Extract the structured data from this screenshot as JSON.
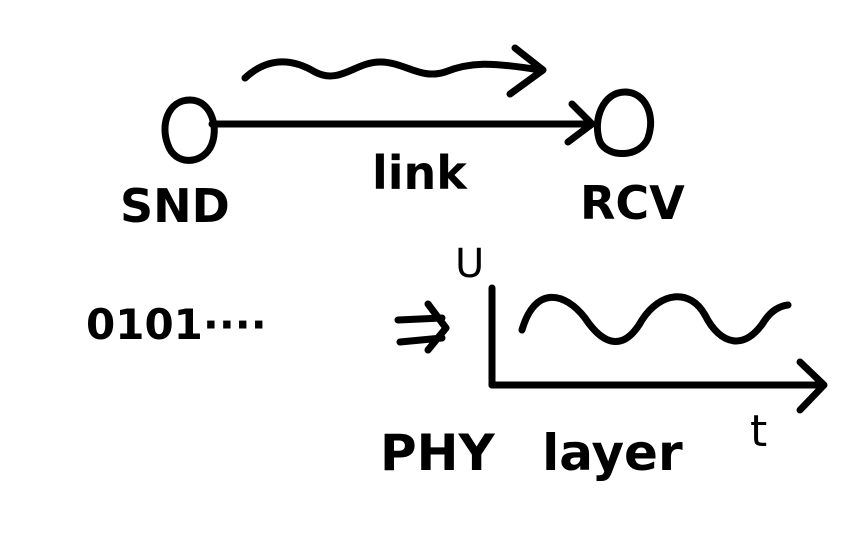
{
  "diagram": {
    "ink_color": "#000000",
    "background": "#ffffff",
    "sender_label": "SND",
    "receiver_label": "RCV",
    "link_label": "link",
    "bits_label": "0101····",
    "graph": {
      "y_axis_label": "U",
      "x_axis_label": "t"
    },
    "layer_label": "PHY layer"
  }
}
